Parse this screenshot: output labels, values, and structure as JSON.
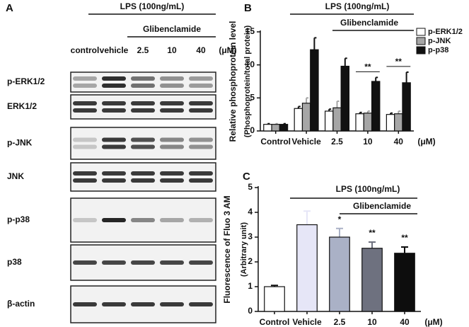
{
  "blot": {
    "label": "A",
    "treatment": "LPS (100ng/mL)",
    "drug": "Glibenclamide",
    "lanes": [
      "control",
      "vehicle",
      "2.5",
      "10",
      "40"
    ],
    "unit": "(μM)",
    "rows": [
      "p-ERK1/2",
      "ERK1/2",
      "p-JNK",
      "JNK",
      "p-p38",
      "p38",
      "β-actin"
    ]
  },
  "chart_data": [
    {
      "type": "bar",
      "label": "B",
      "ylabel": [
        "Relative phosphoprotein level",
        "(Phosphoprotein/total protein)"
      ],
      "categories": [
        "Control",
        "Vehicle",
        "2.5",
        "10",
        "40"
      ],
      "unit": "(μM)",
      "series": [
        {
          "name": "p-ERK1/2",
          "color": "#ffffff",
          "values": [
            1.0,
            3.4,
            3.0,
            2.6,
            2.5
          ],
          "errors": [
            0.1,
            0.3,
            0.3,
            0.2,
            0.2
          ]
        },
        {
          "name": "p-JNK",
          "color": "#a6a6a6",
          "values": [
            1.0,
            4.2,
            3.5,
            2.7,
            2.6
          ],
          "errors": [
            0.1,
            0.8,
            1.0,
            0.3,
            0.4
          ]
        },
        {
          "name": "p-p38",
          "color": "#111111",
          "values": [
            1.0,
            12.3,
            9.8,
            7.5,
            7.3
          ],
          "errors": [
            0.1,
            1.8,
            1.2,
            0.6,
            1.6
          ]
        }
      ],
      "ylim": [
        0,
        15
      ],
      "yticks": [
        0,
        5,
        10,
        15
      ],
      "treatment": "LPS (100ng/mL)",
      "drug": "Glibenclamide",
      "significance": [
        "**",
        "**"
      ]
    },
    {
      "type": "bar",
      "label": "C",
      "ylabel": [
        "Fluorescence of Fluo 3 AM",
        "(Arbitrary unit)"
      ],
      "categories": [
        "Control",
        "Vehicle",
        "2.5",
        "10",
        "40"
      ],
      "unit": "(μM)",
      "series": [
        {
          "colors": [
            "#ffffff",
            "#e6e6f7",
            "#aab1c6",
            "#6e717f",
            "#0d0d0d"
          ],
          "values": [
            1.0,
            3.5,
            3.0,
            2.55,
            2.35
          ],
          "errors": [
            0.05,
            0.55,
            0.35,
            0.25,
            0.25
          ]
        }
      ],
      "ylim": [
        0,
        5
      ],
      "yticks": [
        0,
        1,
        2,
        3,
        4,
        5
      ],
      "treatment": "LPS (100ng/mL)",
      "drug": "Glibenclamide",
      "significance": [
        "*",
        "**",
        "**"
      ]
    }
  ]
}
